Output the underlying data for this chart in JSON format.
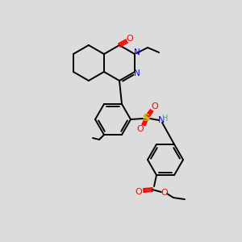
{
  "bg_color": "#dcdcdc",
  "atom_colors": {
    "C": "#000000",
    "N": "#0000ff",
    "O": "#ff0000",
    "S": "#bbbb00",
    "H": "#5a9a8a"
  },
  "bond_color": "#000000",
  "figsize": [
    3.0,
    3.0
  ],
  "dpi": 100,
  "lw": 1.4
}
